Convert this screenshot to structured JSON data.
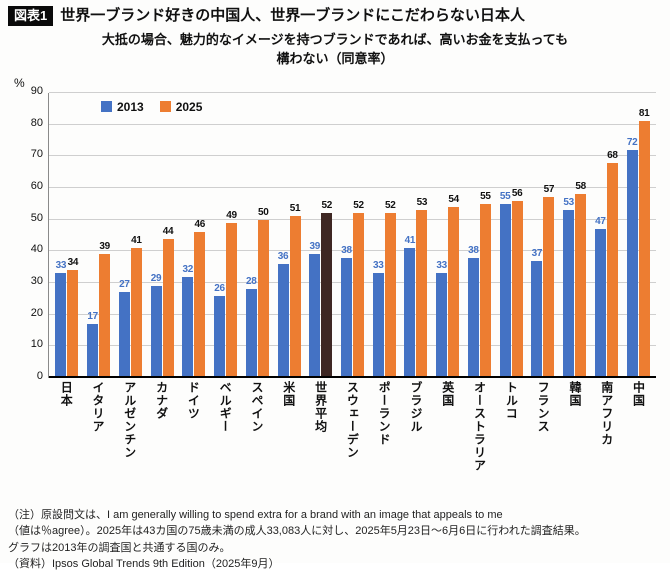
{
  "header": {
    "badge": "図表1",
    "title": "世界一ブランド好きの中国人、世界一ブランドにこだわらない日本人"
  },
  "subtitle": {
    "line1": "大抵の場合、魅力的なイメージを持つブランドであれば、高いお金を支払っても",
    "line2": "構わない（同意率）"
  },
  "chart_data": {
    "type": "bar",
    "title": "大抵の場合、魅力的なイメージを持つブランドであれば、高いお金を支払っても構わない（同意率）",
    "unit": "%",
    "ylim": [
      0,
      90
    ],
    "yticks": [
      0,
      10,
      20,
      30,
      40,
      50,
      60,
      70,
      80,
      90
    ],
    "grid": true,
    "legend_position": "top-left",
    "categories": [
      "日本",
      "イタリア",
      "アルゼンチン",
      "カナダ",
      "ドイツ",
      "ベルギー",
      "スペイン",
      "米国",
      "世界平均",
      "スウェーデン",
      "ポーランド",
      "ブラジル",
      "英国",
      "オーストラリア",
      "トルコ",
      "フランス",
      "韓国",
      "南アフリカ",
      "中国"
    ],
    "series": [
      {
        "name": "2013",
        "color": "#4472C4",
        "label_color": "#4472C4",
        "values": [
          33,
          17,
          27,
          29,
          32,
          26,
          28,
          36,
          39,
          38,
          33,
          41,
          33,
          38,
          55,
          37,
          53,
          47,
          72
        ]
      },
      {
        "name": "2025",
        "color": "#ED7D31",
        "label_color": "#111111",
        "values": [
          34,
          39,
          41,
          44,
          46,
          49,
          50,
          51,
          52,
          52,
          52,
          53,
          54,
          55,
          56,
          57,
          58,
          68,
          81
        ]
      }
    ],
    "highlight": {
      "category": "世界平均",
      "series": "2025",
      "color": "#3E2723"
    }
  },
  "notes": [
    "（注）原設問文は、I am generally willing to spend extra for a brand with an image that appeals to me",
    "（値は％agree）。2025年は43カ国の75歳未満の成人33,083人に対し、2025年5月23日〜6月6日に行われた調査結果。",
    "グラフは2013年の調査国と共通する国のみ。",
    "（資料）Ipsos Global Trends 9th Edition（2025年9月）"
  ]
}
